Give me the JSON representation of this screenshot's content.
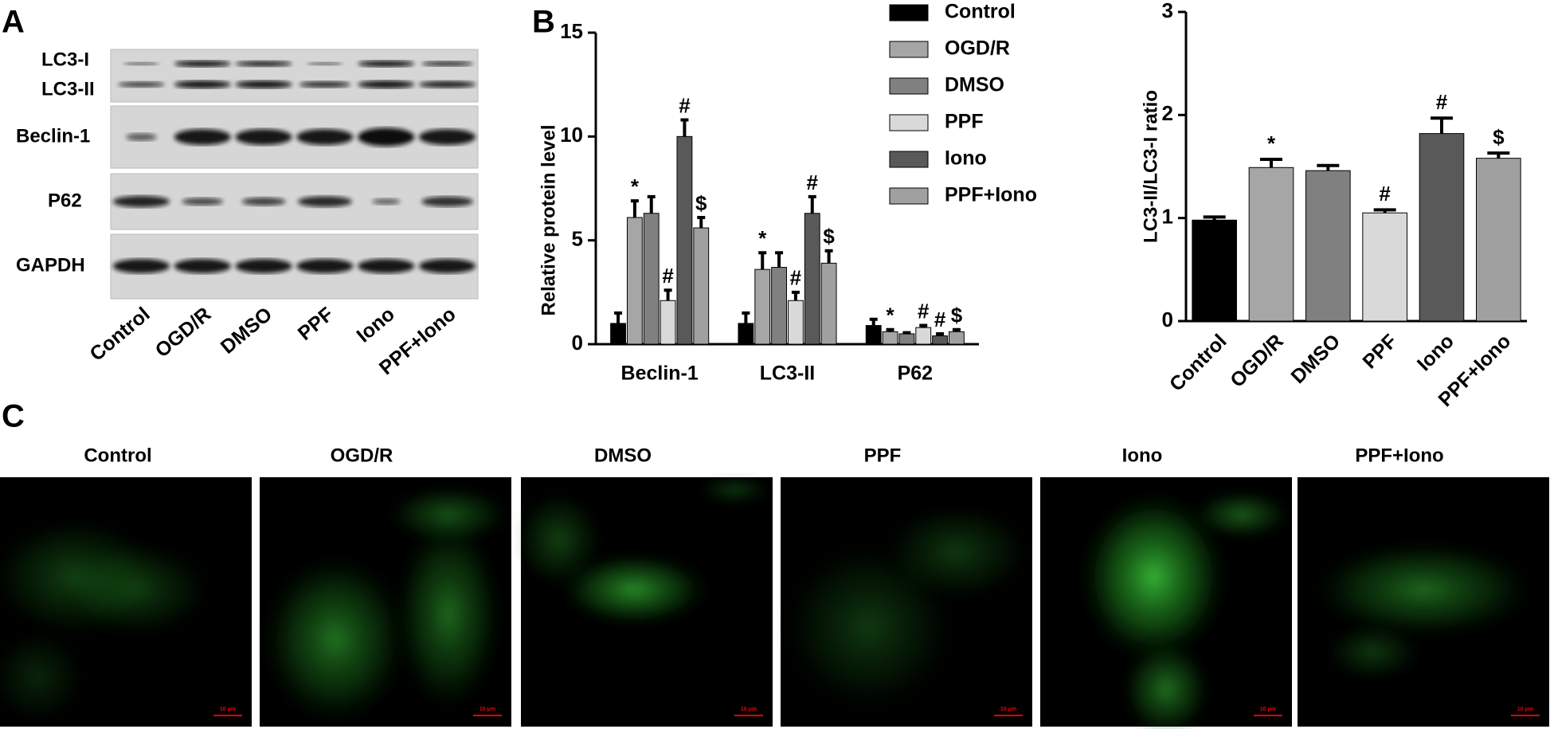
{
  "panel_labels": [
    "A",
    "B",
    "C"
  ],
  "blot": {
    "band_labels": [
      "LC3-I",
      "LC3-II",
      "Beclin-1",
      "P62",
      "GAPDH"
    ],
    "lane_labels": [
      "Control",
      "OGD/R",
      "DMSO",
      "PPF",
      "Iono",
      "PPF+Iono"
    ]
  },
  "chart_data": [
    {
      "type": "grouped-bar",
      "y_label": "Relative protein level",
      "categories": [
        "Beclin-1",
        "LC3-II",
        "P62"
      ],
      "ylim": [
        0,
        15
      ],
      "yticks": [
        0,
        5,
        10,
        15
      ],
      "series": [
        {
          "name": "Control",
          "color": "#000000",
          "values": [
            1.0,
            1.0,
            0.9
          ],
          "errors": [
            0.5,
            0.5,
            0.3
          ]
        },
        {
          "name": "OGD/R",
          "color": "#a6a6a6",
          "values": [
            6.1,
            3.6,
            0.6
          ],
          "errors": [
            0.8,
            0.8,
            0.1
          ],
          "annotations": [
            "*",
            "*",
            "*"
          ]
        },
        {
          "name": "DMSO",
          "color": "#808080",
          "values": [
            6.3,
            3.7,
            0.5
          ],
          "errors": [
            0.8,
            0.7,
            0.05
          ]
        },
        {
          "name": "PPF",
          "color": "#d9d9d9",
          "values": [
            2.1,
            2.1,
            0.8
          ],
          "errors": [
            0.5,
            0.4,
            0.1
          ],
          "annotations": [
            "#",
            "#",
            "#"
          ]
        },
        {
          "name": "Iono",
          "color": "#595959",
          "values": [
            10.0,
            6.3,
            0.4
          ],
          "errors": [
            0.8,
            0.8,
            0.1
          ],
          "annotations": [
            "#",
            "#",
            "#"
          ]
        },
        {
          "name": "PPF+Iono",
          "color": "#a0a0a0",
          "values": [
            5.6,
            3.9,
            0.6
          ],
          "errors": [
            0.5,
            0.6,
            0.1
          ],
          "annotations": [
            "$",
            "$",
            "$"
          ]
        }
      ]
    },
    {
      "type": "bar",
      "y_label": "LC3-II/LC3-I ratio",
      "categories": [
        "Control",
        "OGD/R",
        "DMSO",
        "PPF",
        "Iono",
        "PPF+Iono"
      ],
      "values": [
        0.98,
        1.49,
        1.46,
        1.05,
        1.82,
        1.58
      ],
      "errors": [
        0.03,
        0.08,
        0.05,
        0.03,
        0.15,
        0.05
      ],
      "annotations": [
        null,
        "*",
        null,
        "#",
        "#",
        "$"
      ],
      "colors": [
        "#000000",
        "#a6a6a6",
        "#808080",
        "#d9d9d9",
        "#595959",
        "#a0a0a0"
      ],
      "ylim": [
        0,
        3
      ],
      "yticks": [
        0,
        1,
        2,
        3
      ]
    }
  ],
  "micrographs": {
    "titles": [
      "Control",
      "OGD/R",
      "DMSO",
      "PPF",
      "Iono",
      "PPF+Iono"
    ],
    "scale_bar_label": "10 μm"
  }
}
